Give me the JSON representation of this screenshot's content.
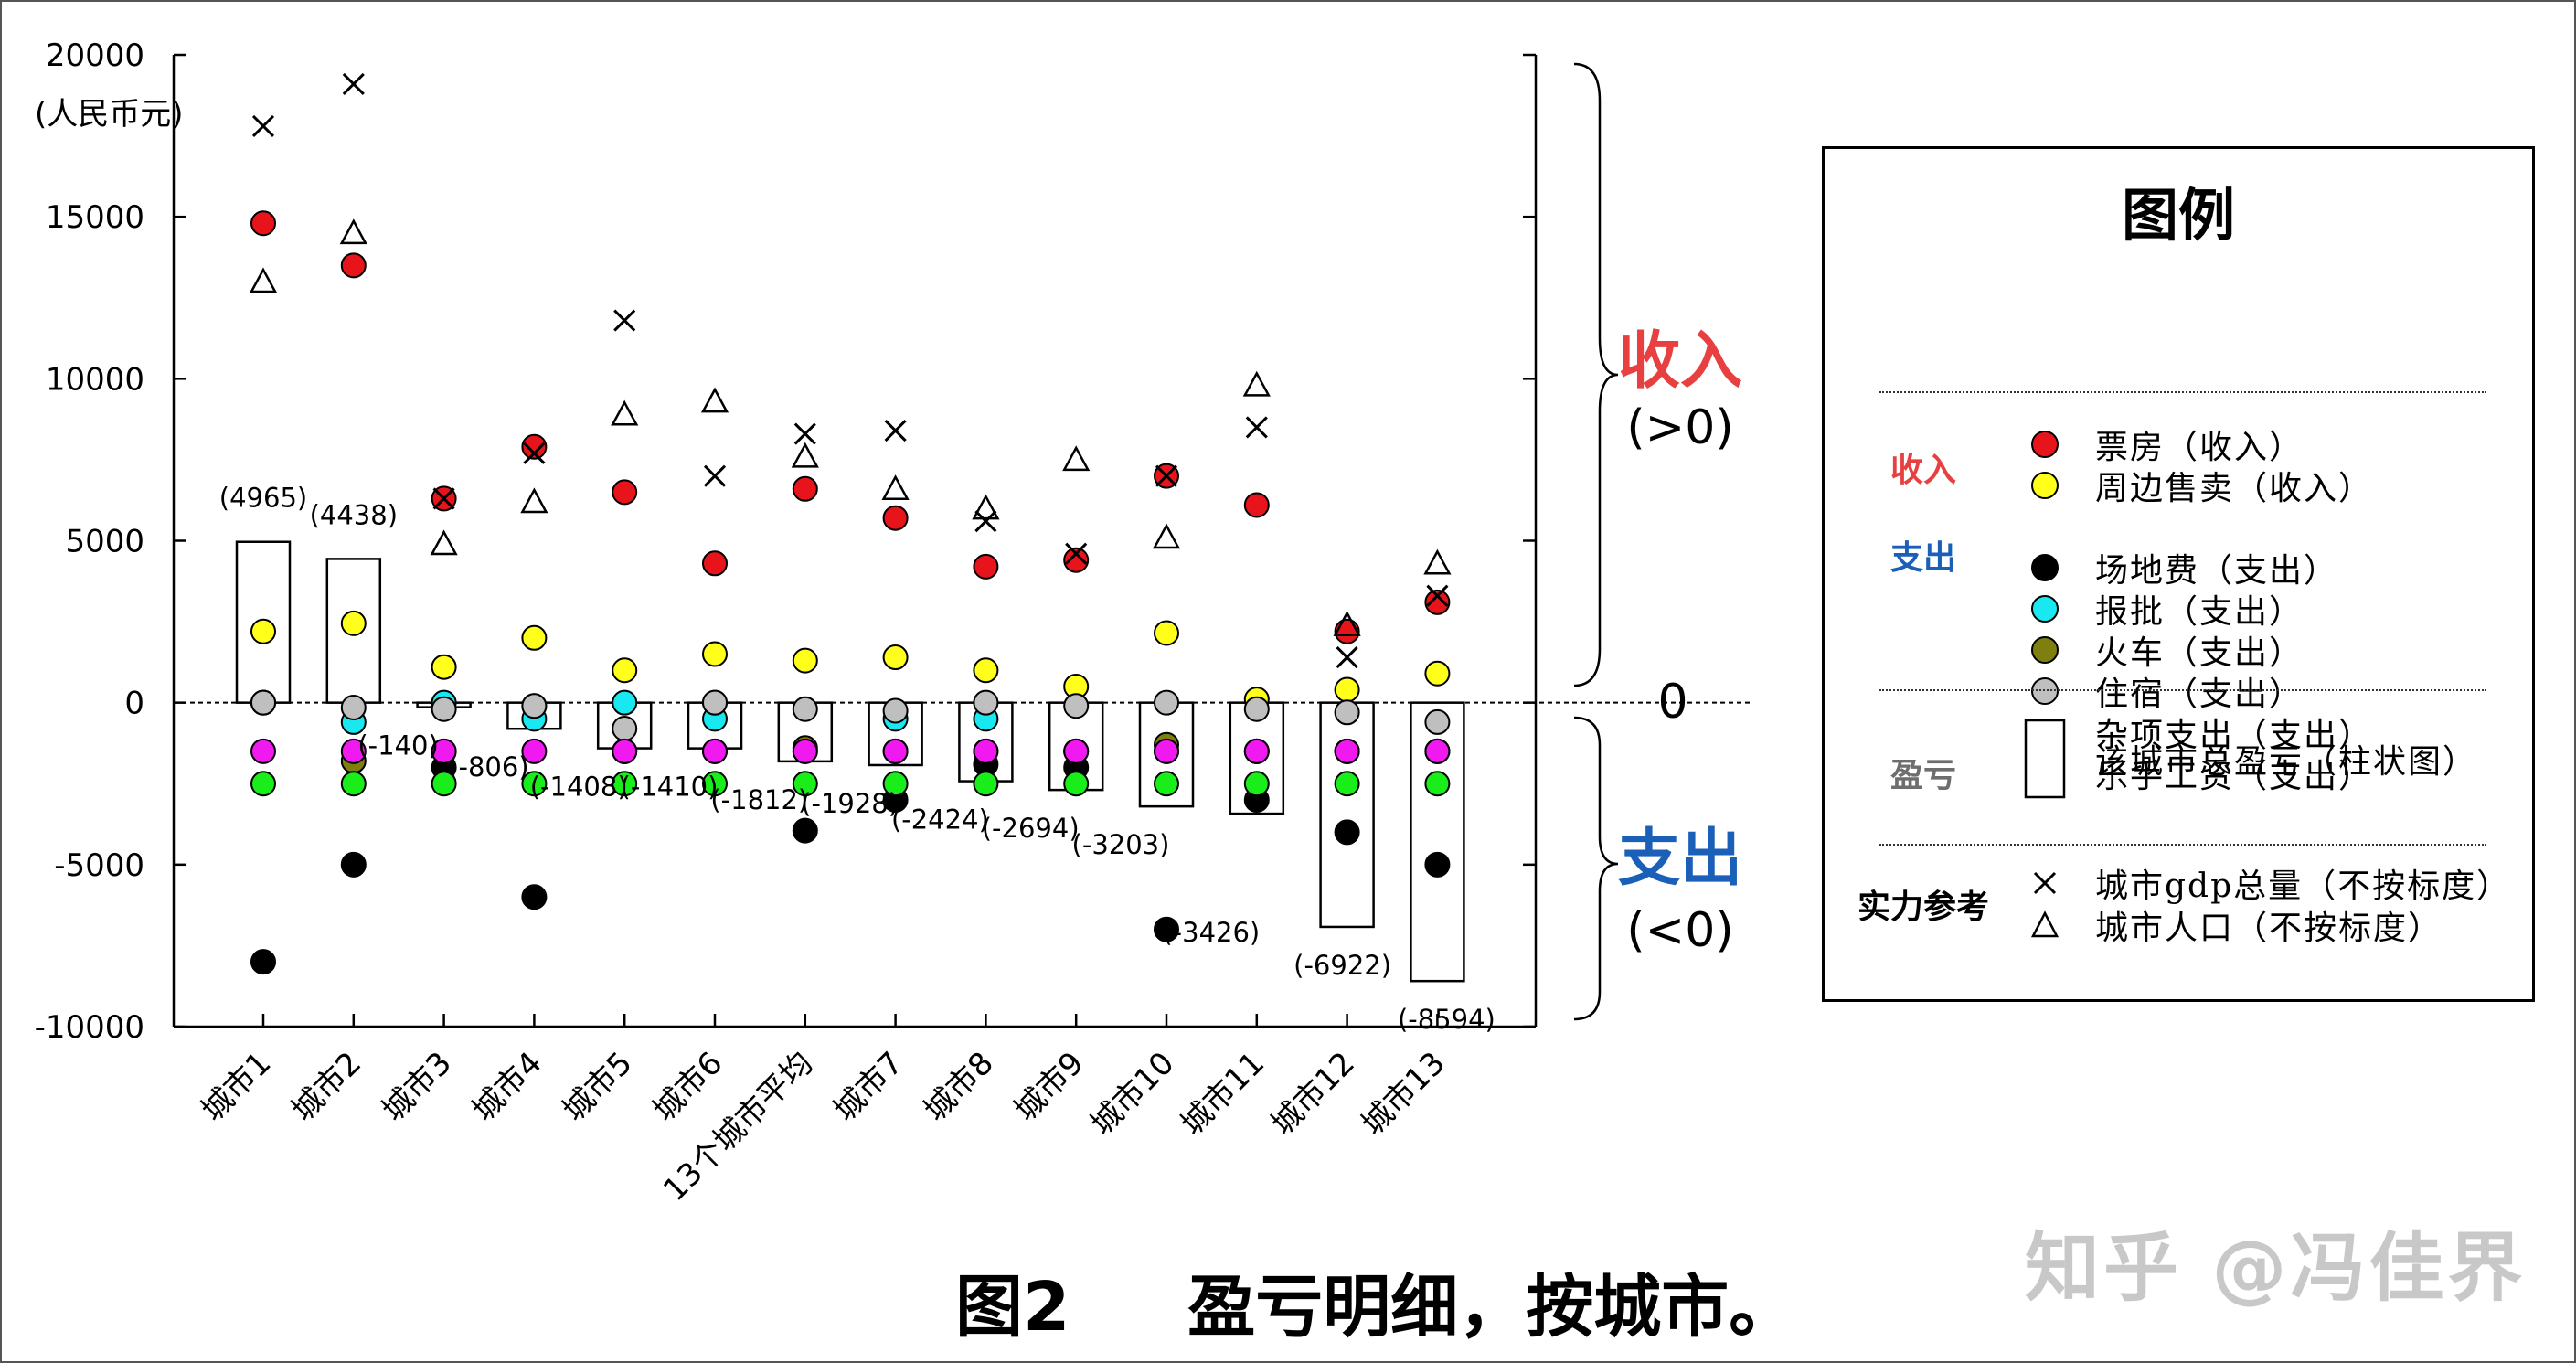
{
  "figure_title": "图2     盈亏明细，按城市。",
  "watermark": "知乎 @冯佳界",
  "brace": {
    "income_label": "收入",
    "income_sub": "(>0)",
    "zero_label": "0",
    "expense_label": "支出",
    "expense_sub": "(<0)"
  },
  "legend": {
    "title": "图例",
    "groups": {
      "income": "收入",
      "expense": "支出",
      "profit": "盈亏",
      "strength": "实力参考"
    },
    "items": {
      "box_office": "票房（收入）",
      "merch": "周边售卖（收入）",
      "venue": "场地费（支出）",
      "permit": "报批（支出）",
      "train": "火车（支出）",
      "lodging": "住宿（支出）",
      "misc": "杂项支出（支出）",
      "musician": "乐手工资（支出）",
      "total": "该城市总盈亏（柱状图）",
      "gdp": "城市gdp总量（不按标度）",
      "population": "城市人口（不按标度）"
    }
  },
  "chart_data": {
    "type": "scatter",
    "title": "",
    "ylabel": "(人民币元)",
    "ylim": [
      -10000,
      20000
    ],
    "yticks": [
      -10000,
      -5000,
      0,
      5000,
      10000,
      15000,
      20000
    ],
    "categories": [
      "城市1",
      "城市2",
      "城市3",
      "城市4",
      "城市5",
      "城市6",
      "13个城市平均",
      "城市7",
      "城市8",
      "城市9",
      "城市10",
      "城市11",
      "城市12",
      "城市13"
    ],
    "bars": {
      "name": "该城市总盈亏（柱状图）",
      "values": [
        4965,
        4438,
        -140,
        -806,
        -1408,
        -1410,
        -1812,
        -1928,
        -2424,
        -2694,
        -3203,
        -3426,
        -6922,
        -8594
      ],
      "labels": [
        "(4965)",
        "(4438)",
        "(-140)",
        "(-806)",
        "(-1408)",
        "(-1410)",
        "(-1812)",
        "(-1928)",
        "(-2424)",
        "(-2694)",
        "(-3203)",
        "(-3426)",
        "(-6922)",
        "(-8594)"
      ]
    },
    "series": [
      {
        "name": "票房（收入）",
        "color": "#e8141c",
        "marker": "circle",
        "values": [
          14800,
          13500,
          6300,
          7900,
          6500,
          4300,
          6600,
          5700,
          4200,
          4400,
          7000,
          6100,
          2200,
          3100
        ]
      },
      {
        "name": "周边售卖（收入）",
        "color": "#ffff1a",
        "marker": "circle",
        "values": [
          2200,
          2450,
          1100,
          2000,
          1000,
          1500,
          1300,
          1400,
          1000,
          500,
          2150,
          100,
          400,
          900
        ]
      },
      {
        "name": "场地费（支出）",
        "color": "#000000",
        "marker": "circle",
        "values": [
          -8000,
          -5000,
          -2000,
          -6000,
          -1500,
          -1500,
          -3950,
          -3000,
          -1900,
          -2000,
          -7000,
          -3000,
          -4000,
          -5000
        ]
      },
      {
        "name": "报批（支出）",
        "color": "#1ae8f0",
        "marker": "circle",
        "values": [
          0,
          -600,
          0,
          -500,
          0,
          -500,
          -1500,
          -500,
          -500,
          -1500,
          -1500,
          -1500,
          -1500,
          -1500
        ]
      },
      {
        "name": "火车（支出）",
        "color": "#7f7f10",
        "marker": "circle",
        "values": [
          0,
          -1800,
          -1500,
          -100,
          -1500,
          0,
          -1400,
          -1500,
          -1500,
          -1500,
          -1300,
          -1500,
          -1500,
          -1500
        ]
      },
      {
        "name": "住宿（支出）",
        "color": "#bfbfbf",
        "marker": "circle",
        "values": [
          0,
          -150,
          -200,
          -100,
          -800,
          0,
          -200,
          -250,
          0,
          -100,
          0,
          -200,
          -300,
          -600
        ]
      },
      {
        "name": "杂项支出（支出）",
        "color": "#f01af0",
        "marker": "circle",
        "values": [
          -1500,
          -1500,
          -1500,
          -1500,
          -1500,
          -1500,
          -1500,
          -1500,
          -1500,
          -1500,
          -1500,
          -1500,
          -1500,
          -1500
        ]
      },
      {
        "name": "乐手工资（支出）",
        "color": "#1aee1a",
        "marker": "circle",
        "values": [
          -2500,
          -2500,
          -2500,
          -2500,
          -2500,
          -2500,
          -2500,
          -2500,
          -2500,
          -2500,
          -2500,
          -2500,
          -2500,
          -2500
        ]
      },
      {
        "name": "城市gdp总量（不按标度）",
        "color": "#000000",
        "marker": "x",
        "values": [
          17800,
          19100,
          6300,
          7700,
          11800,
          7000,
          8300,
          8400,
          5600,
          4600,
          7000,
          8500,
          1400,
          3300
        ]
      },
      {
        "name": "城市人口（不按标度）",
        "color": "#000000",
        "marker": "triangle",
        "values": [
          13000,
          14500,
          4900,
          6200,
          8900,
          9300,
          7600,
          6600,
          6000,
          7500,
          5100,
          9800,
          2400,
          4300
        ]
      }
    ]
  }
}
